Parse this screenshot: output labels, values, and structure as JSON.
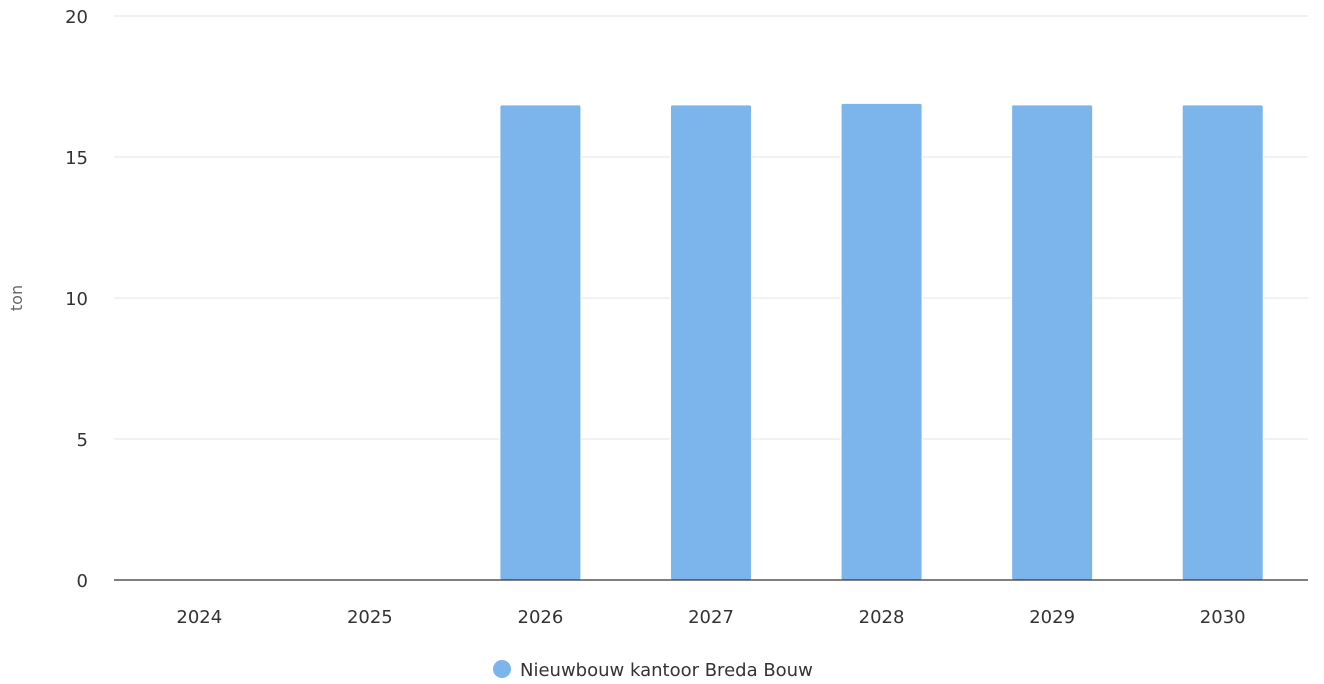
{
  "chart_data": {
    "type": "bar",
    "title": "",
    "xlabel": "",
    "ylabel": "ton",
    "ylim": [
      0,
      20
    ],
    "yticks": [
      0,
      5,
      10,
      15,
      20
    ],
    "grid": true,
    "legend_position": "bottom-center",
    "categories": [
      "2024",
      "2025",
      "2026",
      "2027",
      "2028",
      "2029",
      "2030"
    ],
    "series": [
      {
        "name": "Nieuwbouw kantoor Breda Bouw",
        "color": "#7cb5ec",
        "values": [
          0,
          0,
          16.85,
          16.85,
          16.9,
          16.85,
          16.85
        ]
      }
    ]
  }
}
